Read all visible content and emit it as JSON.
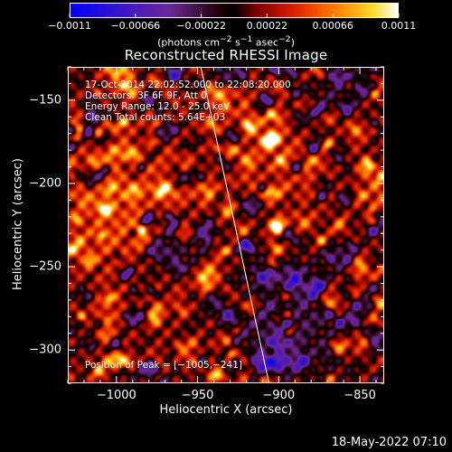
{
  "colorbar": {
    "tick_labels": [
      "−0.0011",
      "−0.00066",
      "−0.00022",
      "0.00022",
      "0.00066",
      "0.0011"
    ],
    "tick_values": [
      -0.0011,
      -0.00066,
      -0.00022,
      0.00022,
      0.00066,
      0.0011
    ],
    "range": [
      -0.0011,
      0.0011
    ],
    "unit_html": "(photons cm<sup>−2</sup> s<sup>−1</sup> asec<sup>−2</sup>)"
  },
  "chart_data": {
    "type": "heatmap",
    "title": "Reconstructed RHESSI Image",
    "xlabel": "Heliocentric X (arcsec)",
    "ylabel": "Heliocentric Y (arcsec)",
    "xlim": [
      -1030,
      -835
    ],
    "ylim": [
      -320,
      -130
    ],
    "x_ticks": [
      -1000,
      -950,
      -900,
      -850
    ],
    "x_tick_labels": [
      "−1000",
      "−950",
      "−900",
      "−850"
    ],
    "y_ticks": [
      -150,
      -200,
      -250,
      -300
    ],
    "y_tick_labels": [
      "−150",
      "−200",
      "−250",
      "−300"
    ],
    "peak_position": [
      -1005,
      -241
    ],
    "limb_line": [
      [
        -948,
        -130
      ],
      [
        -906,
        -320
      ]
    ],
    "annotations": {
      "time_range": "17-Oct-2014 22:02:52.000 to 22:08:20.000",
      "detectors": "Detectors: 3F 6F 9F, Att 0",
      "energy_range": "Energy Range: 12.0 - 25.0 keV",
      "clean_counts": "Clean     Total counts: 5.64E+03",
      "peak": "Position of Peak = [−1005,−241]"
    }
  },
  "footer": {
    "timestamp": "18-May-2022 07:10"
  },
  "colors": {
    "background": "#000000",
    "text": "#ffffff",
    "limb_line": "#ffffff"
  }
}
